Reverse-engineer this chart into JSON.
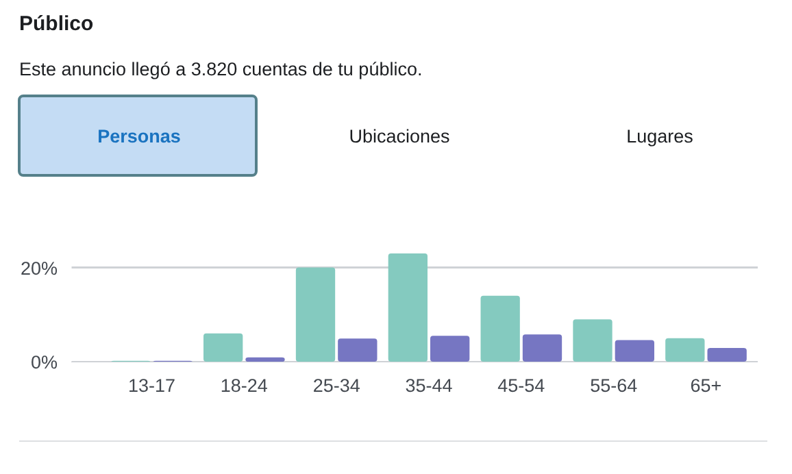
{
  "chart_data": {
    "type": "bar",
    "title": "Público",
    "subtitle": "Este anuncio llegó a 3.820 cuentas de tu público.",
    "annotations": [
      "Personas",
      "Ubicaciones",
      "Lugares"
    ],
    "categories": [
      "13-17",
      "18-24",
      "25-34",
      "35-44",
      "45-54",
      "55-64",
      "65+"
    ],
    "series": [
      {
        "color": "#84cabf",
        "values": [
          0.2,
          6,
          20,
          23,
          14,
          9,
          5
        ]
      },
      {
        "color": "#7676c2",
        "values": [
          0.2,
          0.9,
          4.9,
          5.5,
          5.8,
          4.6,
          2.9
        ]
      }
    ],
    "ylim": [
      0,
      23
    ],
    "yticks": [
      {
        "value": 0,
        "label": "0%"
      },
      {
        "value": 20,
        "label": "20%"
      }
    ],
    "grid": "y"
  }
}
